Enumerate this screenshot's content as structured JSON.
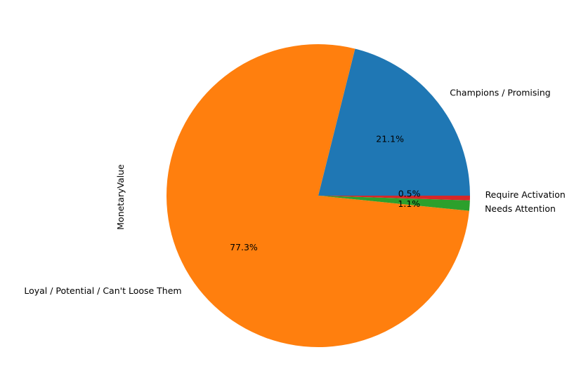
{
  "chart_data": {
    "type": "pie",
    "ylabel": "MonetaryValue",
    "slices": [
      {
        "label": "Champions / Promising",
        "value": 21.1,
        "pct_label": "21.1%",
        "color": "#1f77b4"
      },
      {
        "label": "Loyal / Potential / Can't Loose Them",
        "value": 77.3,
        "pct_label": "77.3%",
        "color": "#ff7f0e"
      },
      {
        "label": "Needs Attention",
        "value": 1.1,
        "pct_label": "1.1%",
        "color": "#2ca02c"
      },
      {
        "label": "Require Activation",
        "value": 0.5,
        "pct_label": "0.5%",
        "color": "#d62728"
      }
    ],
    "legend": "none"
  }
}
